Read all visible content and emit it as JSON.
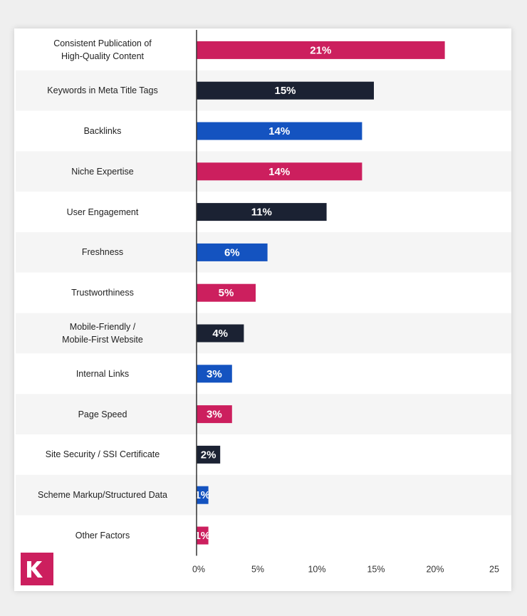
{
  "chart_data": {
    "type": "barh",
    "categories": [
      "Consistent Publication of\nHigh-Quality Content",
      "Keywords in Meta Title Tags",
      "Backlinks",
      "Niche Expertise",
      "User Engagement",
      "Freshness",
      "Trustworthiness",
      "Mobile-Friendly /\nMobile-First Website",
      "Internal Links",
      "Page Speed",
      "Site Security / SSI Certificate",
      "Scheme Markup/Structured Data",
      "Other Factors"
    ],
    "values": [
      21,
      15,
      14,
      14,
      11,
      6,
      5,
      4,
      3,
      3,
      2,
      1,
      1
    ],
    "value_labels": [
      "21%",
      "15%",
      "14%",
      "14%",
      "11%",
      "6%",
      "5%",
      "4%",
      "3%",
      "3%",
      "2%",
      "1%",
      "1%"
    ],
    "colors": [
      "#cc1f5e",
      "#1b2233",
      "#1453c0",
      "#cc1f5e",
      "#1b2233",
      "#1453c0",
      "#cc1f5e",
      "#1b2233",
      "#1453c0",
      "#cc1f5e",
      "#1b2233",
      "#1453c0",
      "#cc1f5e"
    ],
    "xlim": [
      0,
      25
    ],
    "xticks": [
      {
        "value": 0,
        "label": "0%"
      },
      {
        "value": 5,
        "label": "5%"
      },
      {
        "value": 10,
        "label": "10%"
      },
      {
        "value": 15,
        "label": "15%"
      },
      {
        "value": 20,
        "label": "20%"
      },
      25
    ]
  }
}
